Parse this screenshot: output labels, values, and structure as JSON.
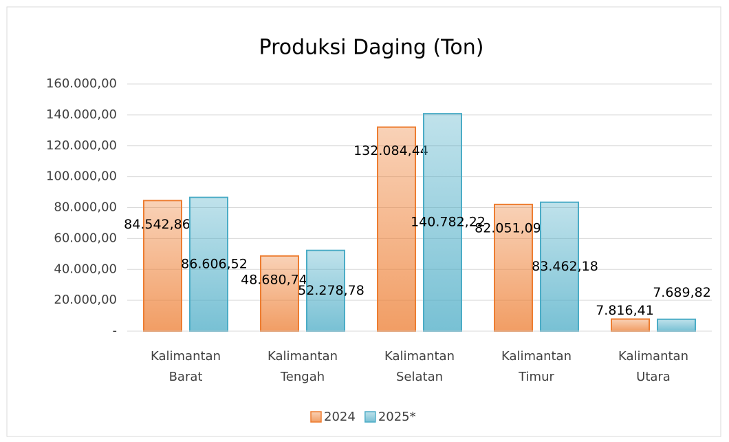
{
  "chart_data": {
    "type": "bar",
    "title": "Produksi Daging (Ton)",
    "categories": [
      "Kalimantan Barat",
      "Kalimantan Tengah",
      "Kalimantan Selatan",
      "Kalimantan Timur",
      "Kalimantan Utara"
    ],
    "series": [
      {
        "name": "2024",
        "color": "#ed7d31",
        "values": [
          84542.86,
          48680.74,
          132084.44,
          82051.09,
          7816.41
        ],
        "value_labels": [
          "84.542,86",
          "48.680,74",
          "132.084,44",
          "82.051,09",
          "7.816,41"
        ]
      },
      {
        "name": "2025*",
        "color": "#4bacc6",
        "values": [
          86606.52,
          52278.78,
          140782.22,
          83462.18,
          7689.82
        ],
        "value_labels": [
          "86.606,52",
          "52.278,78",
          "140.782,22",
          "83.462,18",
          "7.689,82"
        ]
      }
    ],
    "ylim": [
      0,
      160000
    ],
    "yticks": [
      {
        "value": 0,
        "label": "-"
      },
      {
        "value": 20000,
        "label": "20.000,00"
      },
      {
        "value": 40000,
        "label": "40.000,00"
      },
      {
        "value": 60000,
        "label": "60.000,00"
      },
      {
        "value": 80000,
        "label": "80.000,00"
      },
      {
        "value": 100000,
        "label": "100.000,00"
      },
      {
        "value": 120000,
        "label": "120.000,00"
      },
      {
        "value": 140000,
        "label": "140.000,00"
      },
      {
        "value": 160000,
        "label": "160.000,00"
      }
    ],
    "grid": true,
    "legend": "bottom"
  }
}
